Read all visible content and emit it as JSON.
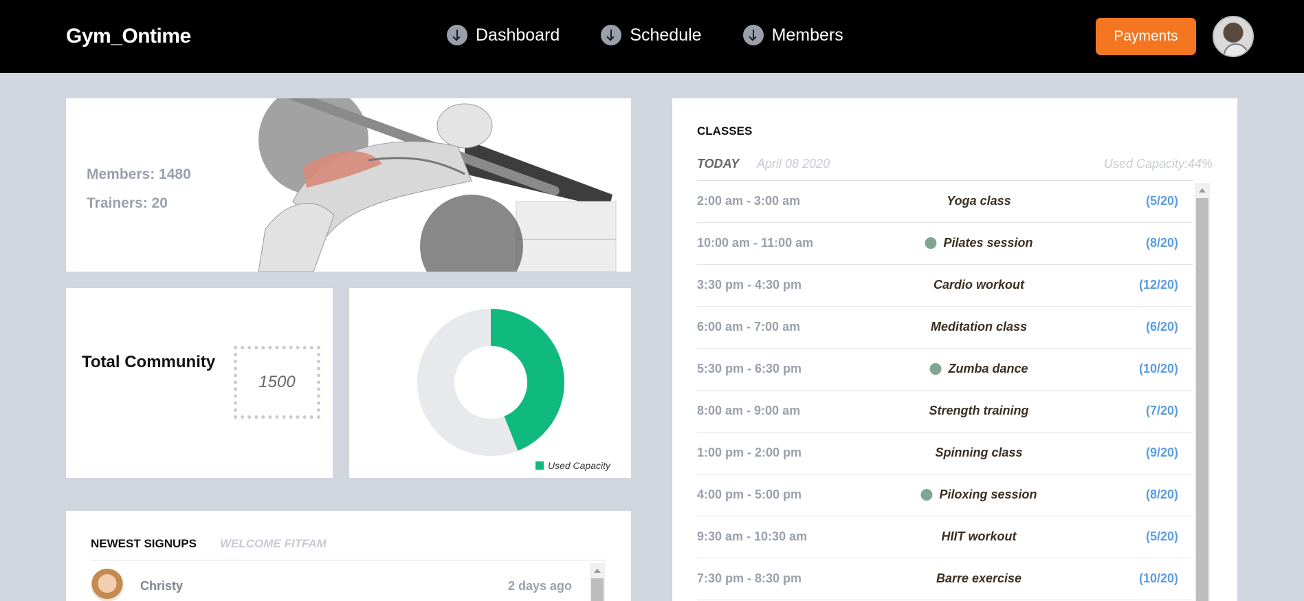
{
  "header": {
    "brand": "Gym_Ontime",
    "nav": [
      {
        "label": "Dashboard",
        "icon": "arrow-down-circle-icon"
      },
      {
        "label": "Schedule",
        "icon": "arrow-down-circle-icon"
      },
      {
        "label": "Members",
        "icon": "arrow-down-circle-icon"
      }
    ],
    "payments_label": "Payments"
  },
  "hero": {
    "members": "Members: 1480",
    "trainers": "Trainers: 20"
  },
  "community": {
    "title": "Total Community",
    "value": "1500"
  },
  "capacity_chart": {
    "legend": "Used Capacity",
    "used_fraction": 0.44,
    "used_color": "#10ba7e",
    "free_color": "#e8e9ec"
  },
  "signups": {
    "title": "NEWEST SIGNUPS",
    "subtitle": "WELCOME FITFAM",
    "rows": [
      {
        "name": "Christy",
        "time": "2 days ago"
      }
    ]
  },
  "classes": {
    "title": "CLASSES",
    "today": "TODAY",
    "date": "April 08 2020",
    "capacity": "Used Capacity:44%",
    "rows": [
      {
        "time": "2:00 am - 3:00 am",
        "name": "Yoga class",
        "dot": false,
        "cap": "(5/20)"
      },
      {
        "time": "10:00 am - 11:00 am",
        "name": "Pilates session",
        "dot": true,
        "cap": "(8/20)"
      },
      {
        "time": "3:30 pm - 4:30 pm",
        "name": "Cardio workout",
        "dot": false,
        "cap": "(12/20)"
      },
      {
        "time": "6:00 am - 7:00 am",
        "name": "Meditation class",
        "dot": false,
        "cap": "(6/20)"
      },
      {
        "time": "5:30 pm - 6:30 pm",
        "name": "Zumba dance",
        "dot": true,
        "cap": "(10/20)"
      },
      {
        "time": "8:00 am - 9:00 am",
        "name": "Strength training",
        "dot": false,
        "cap": "(7/20)"
      },
      {
        "time": "1:00 pm - 2:00 pm",
        "name": "Spinning class",
        "dot": false,
        "cap": "(9/20)"
      },
      {
        "time": "4:00 pm - 5:00 pm",
        "name": "Piloxing session",
        "dot": true,
        "cap": "(8/20)"
      },
      {
        "time": "9:30 am - 10:30 am",
        "name": "HIIT workout",
        "dot": false,
        "cap": "(5/20)"
      },
      {
        "time": "7:30 pm - 8:30 pm",
        "name": "Barre exercise",
        "dot": false,
        "cap": "(10/20)"
      }
    ]
  }
}
